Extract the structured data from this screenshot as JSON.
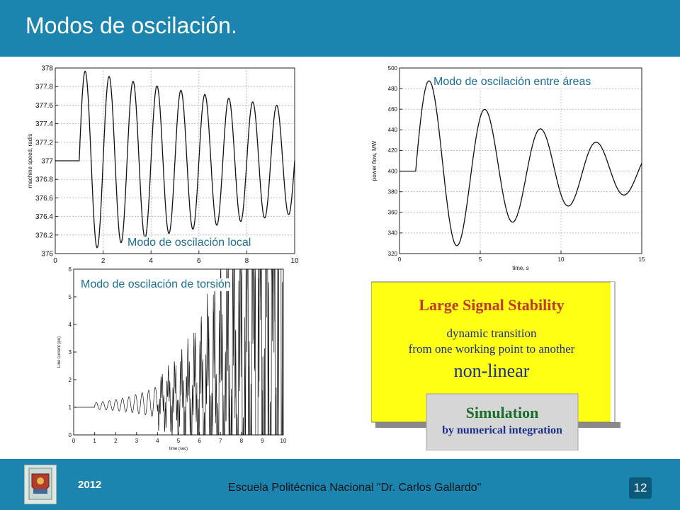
{
  "header": {
    "title": "Modos de oscilación."
  },
  "footer": {
    "year": "2012",
    "school": "Escuela Politécnica Nacional \"Dr. Carlos Gallardo\"",
    "page": "12",
    "logo_icon": "university-crest-icon"
  },
  "colors": {
    "accent": "#1b85b0",
    "page_box": "#0c5a7a",
    "caption": "#1b6f95",
    "slide_yellow": "#ffff14",
    "slide_red": "#c0392b",
    "slide_green": "#1a6e2d",
    "slide_blue": "#1a2f8c"
  },
  "captions": {
    "local": "Modo de oscilación local",
    "interarea": "Modo de oscilación entre áreas",
    "torsion": "Modo de oscilación de torsión"
  },
  "slide": {
    "title": "Large Signal Stability",
    "line1": "dynamic transition",
    "line2": "from one working point to another",
    "line3": "non-linear",
    "sim_title": "Simulation",
    "sim_sub": "by numerical integration"
  },
  "chart_data": [
    {
      "id": "local",
      "type": "line",
      "title": "",
      "xlabel": "",
      "ylabel": "machine speed, rad/s",
      "xlim": [
        0,
        10
      ],
      "ylim": [
        376,
        378
      ],
      "xticks": [
        0,
        2,
        4,
        6,
        8,
        10
      ],
      "yticks": [
        376,
        376.2,
        376.4,
        376.6,
        376.8,
        377,
        377.2,
        377.4,
        377.6,
        377.8,
        378
      ],
      "ytick_labels": [
        "376",
        "376.2",
        "376.4",
        "376.6",
        "376.8",
        "377",
        "377.2",
        "377.4",
        "377.6",
        "377.8",
        "378"
      ],
      "grid": true,
      "series": [
        {
          "x_start": 0,
          "step_at": 1.0,
          "baseline": 377,
          "amplitude": 0.98,
          "frequency": 1.0,
          "decay": 0.06,
          "x_end": 10
        }
      ]
    },
    {
      "id": "interarea",
      "type": "line",
      "title": "",
      "xlabel": "time, s",
      "ylabel": "power flow, MW",
      "xlim": [
        0,
        15
      ],
      "ylim": [
        320,
        500
      ],
      "xticks": [
        0,
        5,
        10,
        15
      ],
      "yticks": [
        320,
        340,
        360,
        380,
        400,
        420,
        440,
        460,
        480,
        500
      ],
      "ytick_labels": [
        "320",
        "340",
        "360",
        "380",
        "400",
        "420",
        "440",
        "460",
        "480",
        "500"
      ],
      "grid": true,
      "series": [
        {
          "x_start": 0,
          "step_at": 1.0,
          "baseline": 400,
          "amplitude": 96,
          "frequency": 0.29,
          "decay": 0.11,
          "x_end": 15
        }
      ]
    },
    {
      "id": "torsion",
      "type": "line",
      "title": "",
      "xlabel": "time (sec)",
      "ylabel": "Line current (pu)",
      "xlim": [
        0,
        10
      ],
      "ylim": [
        0,
        6
      ],
      "xticks": [
        0,
        1,
        2,
        3,
        4,
        5,
        6,
        7,
        8,
        9,
        10
      ],
      "yticks": [
        0,
        1,
        2,
        3,
        4,
        5,
        6
      ],
      "ytick_labels": [
        "0",
        "1",
        "2",
        "3",
        "4",
        "5",
        "6"
      ],
      "grid": false,
      "series": [
        {
          "x_start": 0,
          "step_at": 1.0,
          "baseline": 1,
          "amplitude": 0.12,
          "frequency": 3.2,
          "growth": 0.52,
          "x_end": 10
        }
      ]
    }
  ]
}
